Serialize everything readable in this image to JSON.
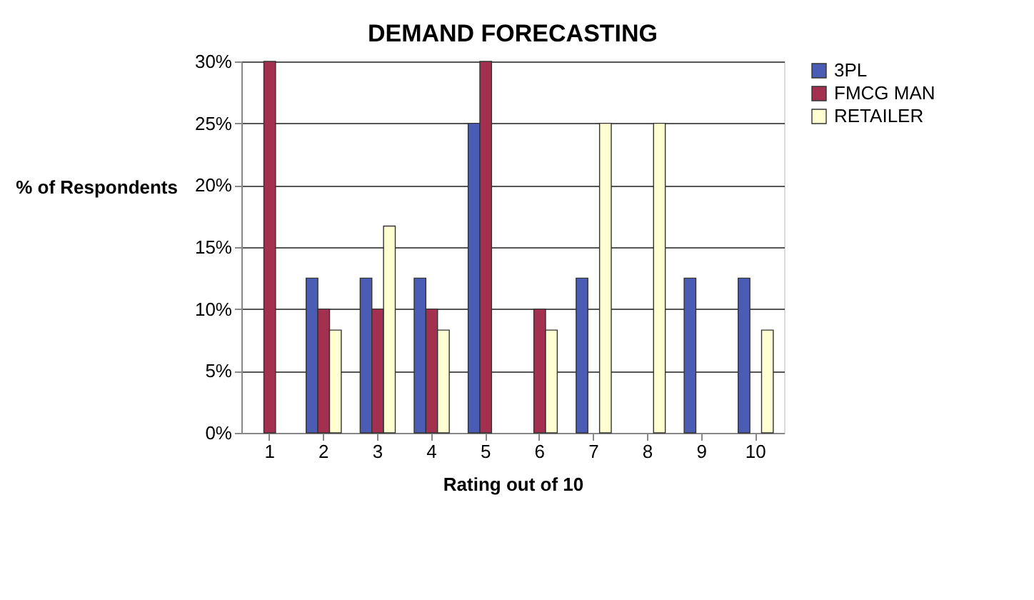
{
  "chart_data": {
    "type": "bar",
    "title": "DEMAND FORECASTING",
    "xlabel": "Rating out of 10",
    "ylabel": "% of Respondents",
    "categories": [
      "1",
      "2",
      "3",
      "4",
      "5",
      "6",
      "7",
      "8",
      "9",
      "10"
    ],
    "series": [
      {
        "name": "3PL",
        "color": "#4a5cb4",
        "values": [
          0,
          12.5,
          12.5,
          12.5,
          25,
          0,
          12.5,
          0,
          12.5,
          12.5
        ]
      },
      {
        "name": "FMCG MAN",
        "color": "#a3304f",
        "values": [
          30,
          10,
          10,
          10,
          30,
          10,
          0,
          0,
          0,
          0
        ]
      },
      {
        "name": "RETAILER",
        "color": "#ffffd2",
        "values": [
          0,
          8.3,
          16.7,
          8.3,
          0,
          8.3,
          25,
          25,
          0,
          8.3
        ]
      }
    ],
    "ylim": [
      0,
      30
    ],
    "yticks": [
      {
        "value": 0,
        "label": "0%"
      },
      {
        "value": 5,
        "label": "5%"
      },
      {
        "value": 10,
        "label": "10%"
      },
      {
        "value": 15,
        "label": "15%"
      },
      {
        "value": 20,
        "label": "20%"
      },
      {
        "value": 25,
        "label": "25%"
      },
      {
        "value": 30,
        "label": "30%"
      }
    ],
    "grid": "y",
    "legend": "right"
  }
}
